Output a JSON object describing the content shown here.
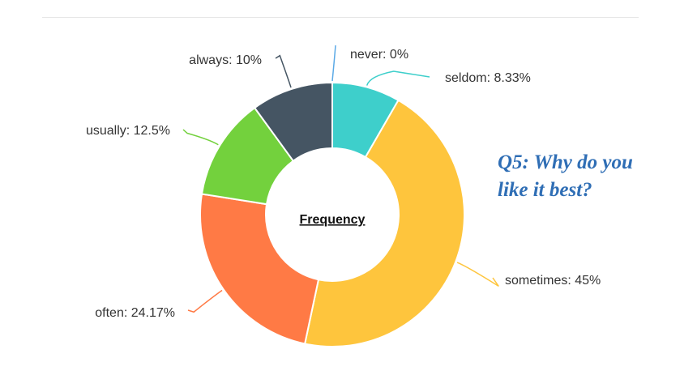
{
  "chart_data": {
    "type": "pie",
    "variant": "donut",
    "center_label": "Frequency",
    "slices": [
      {
        "name": "never",
        "value": 0,
        "label": "never: 0%",
        "color": "#5aa9e6"
      },
      {
        "name": "seldom",
        "value": 8.33,
        "label": "seldom: 8.33%",
        "color": "#3ecfcb"
      },
      {
        "name": "sometimes",
        "value": 45,
        "label": "sometimes: 45%",
        "color": "#fec53d"
      },
      {
        "name": "often",
        "value": 24.17,
        "label": "often: 24.17%",
        "color": "#ff7a45"
      },
      {
        "name": "usually",
        "value": 12.5,
        "label": "usually: 12.5%",
        "color": "#73d13d"
      },
      {
        "name": "always",
        "value": 10,
        "label": "always: 10%",
        "color": "#455563"
      }
    ],
    "legend": "none"
  },
  "question": {
    "line1": "Q5: Why do you",
    "line2": "like it best?"
  }
}
